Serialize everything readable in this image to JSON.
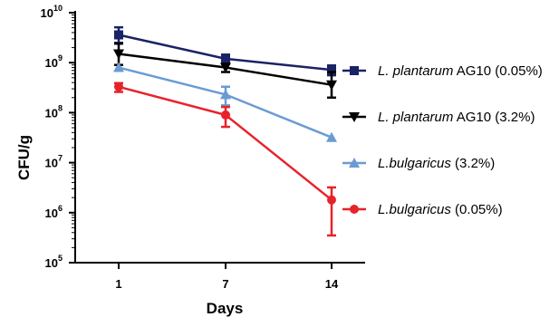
{
  "chart_data": {
    "type": "line",
    "title": "",
    "xlabel": "Days",
    "ylabel": "CFU/g",
    "y_scale": "log",
    "ylim": [
      100000,
      10000000000
    ],
    "y_tick_base": "10",
    "y_tick_exponents": [
      "5",
      "6",
      "7",
      "8",
      "9",
      "10"
    ],
    "x": [
      1,
      7,
      14
    ],
    "x_tick_labels": [
      "1",
      "7",
      "14"
    ],
    "legend_position": "right",
    "series": [
      {
        "name_italic": "L. plantarum",
        "name_rest": " AG10 (0.05%)",
        "color": "#1a2366",
        "marker": "square",
        "values": [
          3600000000,
          1200000000,
          720000000
        ],
        "err_low": [
          2500000000,
          950000000,
          560000000
        ],
        "err_high": [
          5100000000,
          1450000000,
          880000000
        ]
      },
      {
        "name_italic": "L. plantarum",
        "name_rest": " AG10 (3.2%)",
        "color": "#000000",
        "marker": "triangle-down",
        "values": [
          1500000000,
          800000000,
          360000000
        ],
        "err_low": [
          900000000,
          650000000,
          200000000
        ],
        "err_high": [
          2400000000,
          950000000,
          650000000
        ]
      },
      {
        "name_italic": "L.bulgaricus",
        "name_rest": " (3.2%)",
        "color": "#6a9bd3",
        "marker": "triangle-up",
        "values": [
          800000000,
          230000000,
          32000000
        ],
        "err_low": [
          800000000,
          140000000,
          32000000
        ],
        "err_high": [
          800000000,
          330000000,
          32000000
        ]
      },
      {
        "name_italic": "L.bulgaricus",
        "name_rest": " (0.05%)",
        "color": "#e8222b",
        "marker": "circle",
        "values": [
          330000000,
          90000000,
          1800000
        ],
        "err_low": [
          260000000,
          52000000,
          350000
        ],
        "err_high": [
          390000000,
          130000000,
          3200000
        ]
      }
    ]
  }
}
